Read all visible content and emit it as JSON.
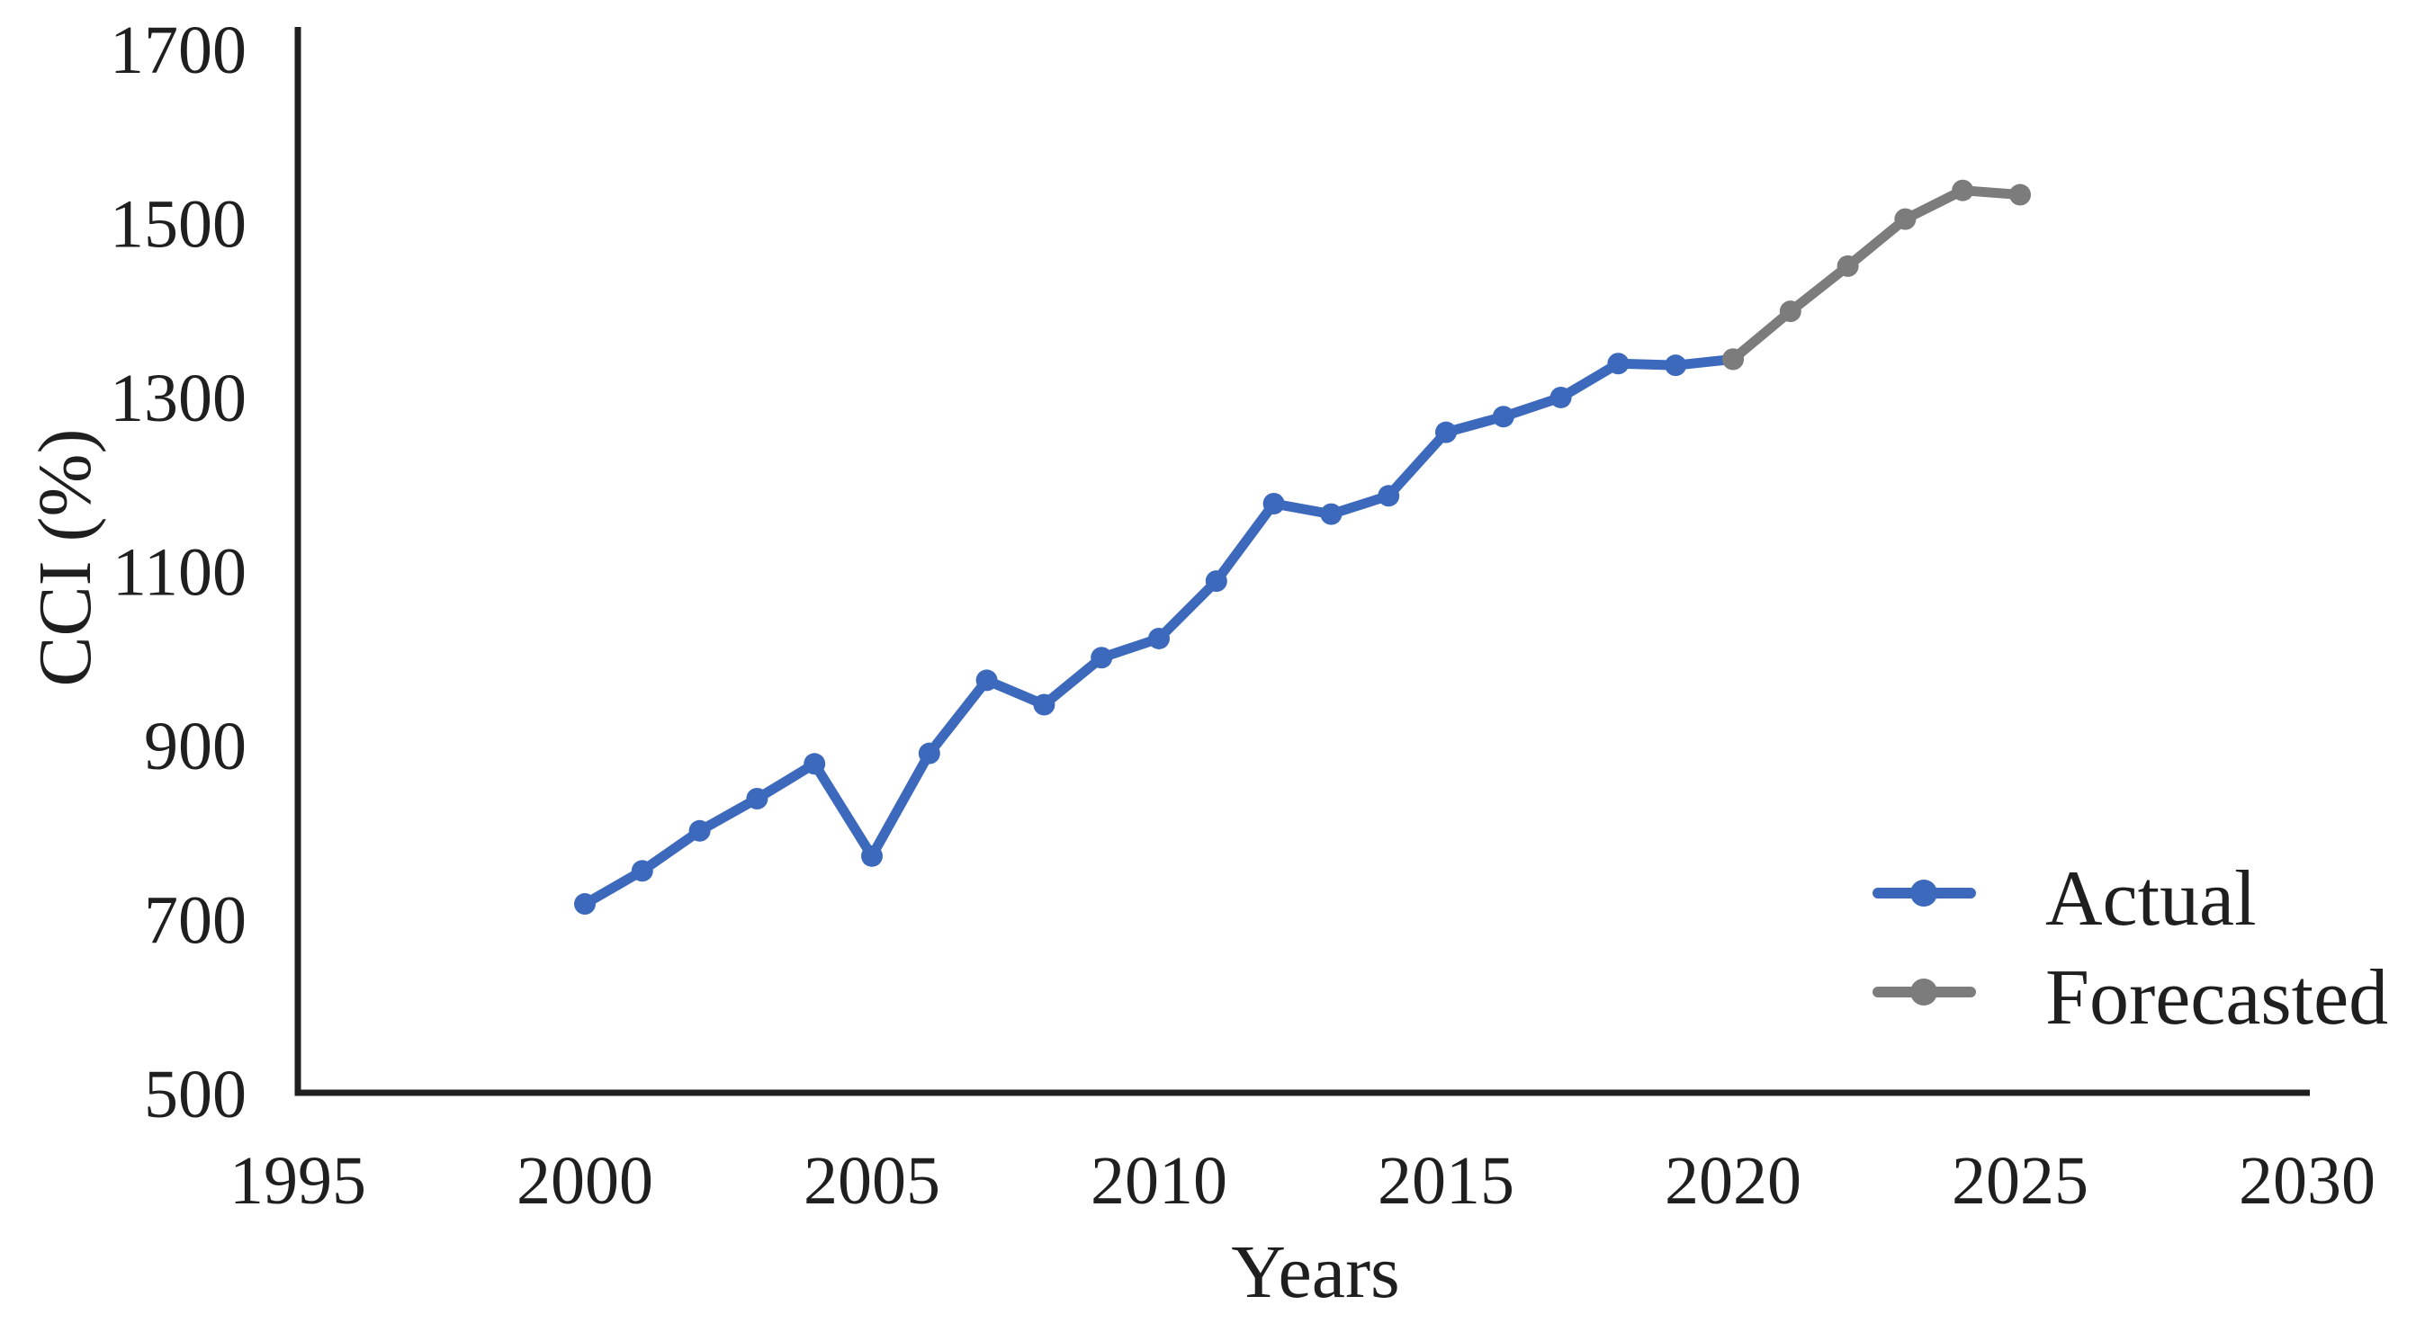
{
  "chart_data": {
    "type": "line",
    "title": "",
    "xlabel": "Years",
    "ylabel": "CCI (%)",
    "xlim": [
      1995,
      2030
    ],
    "ylim": [
      500,
      1700
    ],
    "x_ticks": [
      1995,
      2000,
      2005,
      2010,
      2015,
      2020,
      2025,
      2030
    ],
    "y_ticks": [
      500,
      700,
      900,
      1100,
      1300,
      1500,
      1700
    ],
    "grid": false,
    "legend_position": "inside-lower-right",
    "series": [
      {
        "name": "Actual",
        "color": "#3c69bc",
        "x": [
          2000,
          2001,
          2002,
          2003,
          2004,
          2005,
          2006,
          2007,
          2008,
          2009,
          2010,
          2011,
          2012,
          2013,
          2014,
          2015,
          2016,
          2017,
          2018,
          2019,
          2020
        ],
        "values": [
          717,
          755,
          801,
          838,
          878,
          772,
          890,
          974,
          946,
          1000,
          1022,
          1088,
          1177,
          1165,
          1186,
          1259,
          1277,
          1299,
          1338,
          1336,
          1343
        ]
      },
      {
        "name": "Forecasted",
        "color": "#7c7c7c",
        "x": [
          2020,
          2021,
          2022,
          2023,
          2024,
          2025
        ],
        "values": [
          1343,
          1398,
          1450,
          1504,
          1537,
          1532
        ]
      }
    ],
    "axis_color": "#1f1f1f",
    "text_color": "#1f1f1f"
  }
}
